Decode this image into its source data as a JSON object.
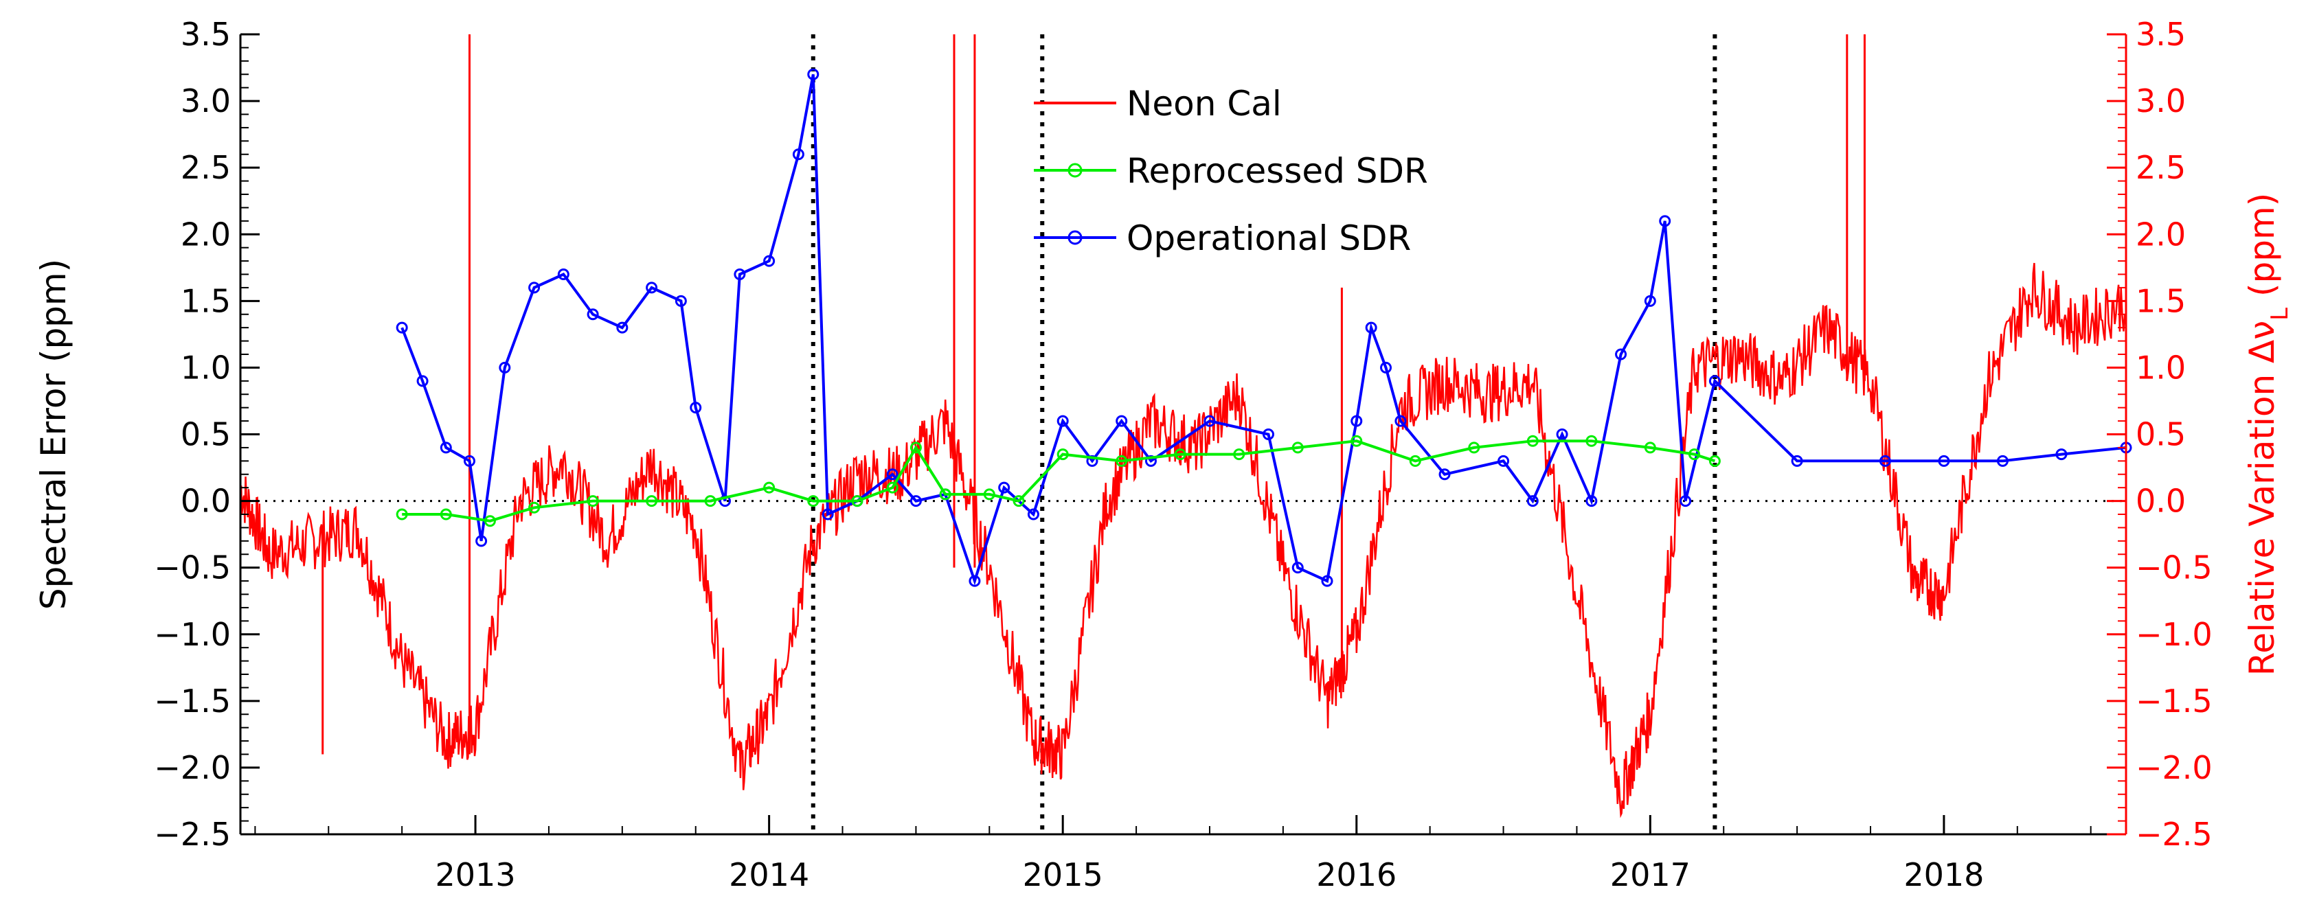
{
  "chart_data": {
    "type": "line",
    "title": "",
    "xlabel": "",
    "ylabel": "Spectral Error (ppm)",
    "y2label": "Relative Variation Δν",
    "y2label_sub": "L",
    "y2label_unit": " (ppm)",
    "xlim": [
      2012.2,
      2018.62
    ],
    "ylim": [
      -2.5,
      3.5
    ],
    "y2lim": [
      -2.5,
      3.5
    ],
    "x_ticks": [
      "2013",
      "2014",
      "2015",
      "2016",
      "2017",
      "2018"
    ],
    "x_tick_values": [
      2013,
      2014,
      2015,
      2016,
      2017,
      2018
    ],
    "y_ticks": [
      "3.5",
      "3.0",
      "2.5",
      "2.0",
      "1.5",
      "1.0",
      "0.5",
      "0.0",
      "−0.5",
      "−1.0",
      "−1.5",
      "−2.0",
      "−2.5"
    ],
    "y_tick_values": [
      3.5,
      3.0,
      2.5,
      2.0,
      1.5,
      1.0,
      0.5,
      0.0,
      -0.5,
      -1.0,
      -1.5,
      -2.0,
      -2.5
    ],
    "zero_line": true,
    "vertical_markers": [
      2014.15,
      2014.93,
      2017.22
    ],
    "legend_position": "top-center",
    "colors": {
      "neon": "#ff0000",
      "reprocessed": "#00ee00",
      "operational": "#0000ff",
      "axis": "#000000",
      "right_axis": "#ff0000"
    },
    "series": [
      {
        "name": "Neon Cal",
        "style": "line",
        "x": [
          2012.2,
          2012.3,
          2012.45,
          2012.6,
          2012.75,
          2012.9,
          2013.0,
          2013.15,
          2013.3,
          2013.45,
          2013.6,
          2013.75,
          2013.9,
          2014.0,
          2014.15,
          2014.3,
          2014.45,
          2014.6,
          2014.75,
          2014.9,
          2015.0,
          2015.15,
          2015.3,
          2015.45,
          2015.6,
          2015.75,
          2015.9,
          2016.0,
          2016.15,
          2016.3,
          2016.45,
          2016.6,
          2016.75,
          2016.9,
          2017.0,
          2017.15,
          2017.3,
          2017.45,
          2017.6,
          2017.75,
          2017.9,
          2018.0,
          2018.15,
          2018.3,
          2018.45,
          2018.62
        ],
        "values": [
          0.1,
          -0.4,
          -0.3,
          -0.2,
          -1.2,
          -1.8,
          -1.7,
          0.0,
          0.3,
          -0.3,
          0.3,
          -0.2,
          -2.0,
          -1.6,
          -0.3,
          0.2,
          0.2,
          0.6,
          -0.5,
          -1.8,
          -1.9,
          0.0,
          0.6,
          0.4,
          0.8,
          -0.5,
          -1.5,
          -1.0,
          0.7,
          0.9,
          0.8,
          0.9,
          -0.7,
          -2.2,
          -1.6,
          1.0,
          1.1,
          0.9,
          1.3,
          0.9,
          -0.6,
          -0.7,
          0.9,
          1.6,
          1.3,
          1.5
        ],
        "spikes": [
          {
            "x": 2012.98,
            "low": -1.9,
            "high": 3.5
          },
          {
            "x": 2012.48,
            "low": -1.9,
            "high": -0.3
          },
          {
            "x": 2014.63,
            "low": -0.5,
            "high": 3.5
          },
          {
            "x": 2014.7,
            "low": -0.5,
            "high": 3.5
          },
          {
            "x": 2015.95,
            "low": -1.3,
            "high": 1.6
          },
          {
            "x": 2017.67,
            "low": 0.9,
            "high": 3.5
          },
          {
            "x": 2017.73,
            "low": 0.9,
            "high": 3.5
          }
        ]
      },
      {
        "name": "Reprocessed SDR",
        "style": "line-marker",
        "x": [
          2012.75,
          2012.9,
          2013.05,
          2013.2,
          2013.4,
          2013.6,
          2013.8,
          2014.0,
          2014.15,
          2014.3,
          2014.42,
          2014.5,
          2014.6,
          2014.75,
          2014.85,
          2015.0,
          2015.2,
          2015.4,
          2015.6,
          2015.8,
          2016.0,
          2016.2,
          2016.4,
          2016.6,
          2016.8,
          2017.0,
          2017.15,
          2017.22
        ],
        "values": [
          -0.1,
          -0.1,
          -0.15,
          -0.05,
          0.0,
          0.0,
          0.0,
          0.1,
          0.0,
          0.0,
          0.1,
          0.4,
          0.05,
          0.05,
          0.0,
          0.35,
          0.3,
          0.35,
          0.35,
          0.4,
          0.45,
          0.3,
          0.4,
          0.45,
          0.45,
          0.4,
          0.35,
          0.3
        ]
      },
      {
        "name": "Operational SDR",
        "style": "line-marker",
        "x": [
          2012.75,
          2012.82,
          2012.9,
          2012.98,
          2013.02,
          2013.1,
          2013.2,
          2013.3,
          2013.4,
          2013.5,
          2013.6,
          2013.7,
          2013.75,
          2013.85,
          2013.9,
          2014.0,
          2014.1,
          2014.15,
          2014.2,
          2014.3,
          2014.42,
          2014.5,
          2014.6,
          2014.7,
          2014.8,
          2014.9,
          2015.0,
          2015.1,
          2015.2,
          2015.3,
          2015.5,
          2015.7,
          2015.8,
          2015.9,
          2016.0,
          2016.05,
          2016.1,
          2016.15,
          2016.3,
          2016.5,
          2016.6,
          2016.7,
          2016.8,
          2016.9,
          2017.0,
          2017.05,
          2017.12,
          2017.22,
          2017.5,
          2017.8,
          2018.0,
          2018.2,
          2018.4,
          2018.62
        ],
        "values": [
          1.3,
          0.9,
          0.4,
          0.3,
          -0.3,
          1.0,
          1.6,
          1.7,
          1.4,
          1.3,
          1.6,
          1.5,
          0.7,
          0.0,
          1.7,
          1.8,
          2.6,
          3.2,
          -0.1,
          0.0,
          0.2,
          0.0,
          0.05,
          -0.6,
          0.1,
          -0.1,
          0.6,
          0.3,
          0.6,
          0.3,
          0.6,
          0.5,
          -0.5,
          -0.6,
          0.6,
          1.3,
          1.0,
          0.6,
          0.2,
          0.3,
          0.0,
          0.5,
          0.0,
          1.1,
          1.5,
          2.1,
          0.0,
          0.9,
          0.3,
          0.3,
          0.3,
          0.3,
          0.35,
          0.4
        ]
      }
    ]
  }
}
